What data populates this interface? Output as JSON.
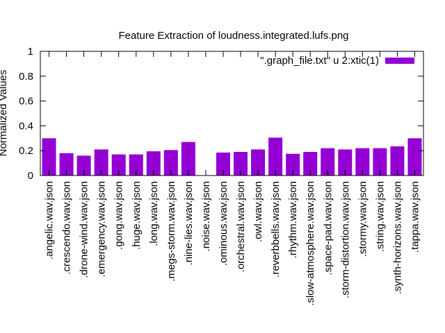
{
  "chart_data": {
    "type": "bar",
    "title": "Feature Extraction of loudness.integrated.lufs.png",
    "ylabel": "Normalized Values",
    "xlabel": "",
    "ylim": [
      0,
      1
    ],
    "yticks": [
      "0",
      "0.2",
      "0.4",
      "0.6",
      "0.8",
      "1"
    ],
    "ytick_values": [
      0,
      0.2,
      0.4,
      0.6,
      0.8,
      1
    ],
    "legend_position": "top-right",
    "bar_color": "#9400d3",
    "grid": false,
    "categories": [
      ".angelic.wav.json",
      ".crescendo.wav.json",
      ".drone-wind.wav.json",
      ".emergency.wav.json",
      ".gong.wav.json",
      ".huge.wav.json",
      ".long.wav.json",
      ".megs-storm.wav.json",
      ".nine-lies.wav.json",
      ".noise.wav.json",
      ".ominous.wav.json",
      ".orchestral.wav.json",
      ".owl.wav.json",
      ".reverbbells.wav.json",
      ".rhythm.wav.json",
      ".slow-atmosphere.wav.json",
      ".space-pad.wav.json",
      ".storm-distortion.wav.json",
      ".stormy.wav.json",
      ".string.wav.json",
      ".synth-horizons.wav.json",
      ".tappa.wav.json"
    ],
    "series": [
      {
        "name": "\".graph_file.txt\" u 2:xtic(1)",
        "values": [
          0.3,
          0.18,
          0.16,
          0.21,
          0.17,
          0.17,
          0.195,
          0.205,
          0.27,
          0.0,
          0.185,
          0.19,
          0.21,
          0.305,
          0.175,
          0.19,
          0.22,
          0.21,
          0.22,
          0.22,
          0.235,
          0.3
        ]
      }
    ]
  }
}
